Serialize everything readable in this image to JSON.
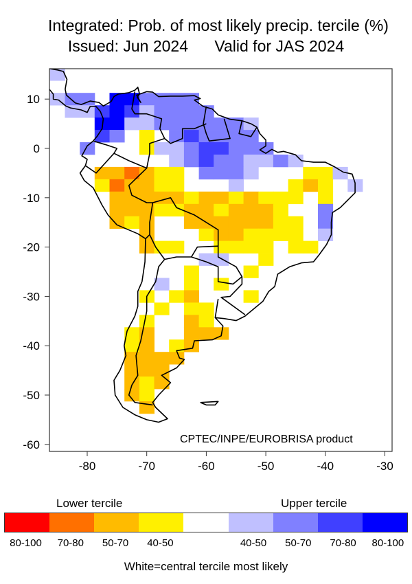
{
  "title": {
    "line1": "Integrated: Prob. of most likely precip. tercile (%)",
    "issued": "Issued: Jun 2024",
    "valid": "Valid for JAS 2024"
  },
  "credit": "CPTEC/INPE/EUROBRISA product",
  "axes": {
    "x_ticks": [
      "-80",
      "-70",
      "-60",
      "-50",
      "-40",
      "-30"
    ],
    "x_values": [
      -80,
      -70,
      -60,
      -50,
      -40,
      -30
    ],
    "y_ticks": [
      "10",
      "0",
      "-10",
      "-20",
      "-30",
      "-40",
      "-50",
      "-60"
    ],
    "y_values": [
      10,
      0,
      -10,
      -20,
      -30,
      -40,
      -50,
      -60
    ],
    "lon_range": [
      -86.3,
      -28.7
    ],
    "lat_range": [
      -61.3,
      16.3
    ]
  },
  "legend": {
    "lower_label": "Lower tercile",
    "upper_label": "Upper tercile",
    "footer": "White=central tercile most likely",
    "bins": [
      {
        "code": -4,
        "label": "80-100",
        "color": "#ff0000"
      },
      {
        "code": -3,
        "label": "70-80",
        "color": "#ff7000"
      },
      {
        "code": -2,
        "label": "50-70",
        "color": "#ffbb00"
      },
      {
        "code": -1,
        "label": "40-50",
        "color": "#fff000"
      },
      {
        "code": 0,
        "label": "",
        "color": "#ffffff"
      },
      {
        "code": 1,
        "label": "40-50",
        "color": "#c0c0ff"
      },
      {
        "code": 2,
        "label": "50-70",
        "color": "#8080ff"
      },
      {
        "code": 3,
        "label": "70-80",
        "color": "#4040ff"
      },
      {
        "code": 4,
        "label": "80-100",
        "color": "#0000ff"
      }
    ]
  },
  "grid": {
    "lon_start": -85,
    "lon_step": 2.5,
    "lat_step": 2.5,
    "rows": [
      {
        "lat": 15,
        "v": [
          1,
          0,
          0,
          0,
          0,
          0,
          0,
          0,
          0,
          0,
          0,
          0,
          0,
          0,
          0,
          0,
          0,
          0,
          0,
          0,
          0,
          0
        ]
      },
      {
        "lat": 10,
        "v": [
          1,
          2,
          2,
          0,
          4,
          4,
          2,
          2,
          2,
          2,
          0,
          0,
          0,
          0,
          0,
          0,
          0,
          0,
          0,
          0,
          0,
          0
        ]
      },
      {
        "lat": 7.5,
        "v": [
          0,
          1,
          1,
          3,
          4,
          3,
          1,
          2,
          2,
          2,
          2,
          0,
          0,
          0,
          0,
          0,
          0,
          0,
          0,
          0,
          0,
          0
        ]
      },
      {
        "lat": 5,
        "v": [
          0,
          0,
          0,
          4,
          4,
          1,
          1,
          2,
          2,
          2,
          2,
          2,
          2,
          1,
          0,
          0,
          0,
          0,
          0,
          0,
          0,
          0
        ]
      },
      {
        "lat": 2.5,
        "v": [
          0,
          0,
          0,
          3,
          2,
          0,
          -1,
          0,
          2,
          3,
          2,
          2,
          2,
          2,
          0,
          0,
          0,
          0,
          0,
          0,
          0,
          0
        ]
      },
      {
        "lat": 0,
        "v": [
          0,
          0,
          2,
          0,
          0,
          0,
          -1,
          1,
          1,
          2,
          3,
          3,
          2,
          2,
          2,
          0,
          0,
          0,
          0,
          0,
          0,
          0
        ]
      },
      {
        "lat": -2.5,
        "v": [
          0,
          0,
          0,
          0,
          0,
          0,
          0,
          0,
          1,
          2,
          3,
          2,
          2,
          1,
          1,
          2,
          1,
          0,
          0,
          0,
          0,
          0
        ]
      },
      {
        "lat": -5,
        "v": [
          0,
          0,
          0,
          -2,
          -2,
          -3,
          -2,
          -1,
          -1,
          0,
          2,
          2,
          2,
          1,
          0,
          0,
          0,
          -1,
          -1,
          1,
          0,
          0
        ]
      },
      {
        "lat": -7.5,
        "v": [
          0,
          0,
          0,
          -1,
          -3,
          -2,
          -2,
          -1,
          -1,
          0,
          0,
          0,
          1,
          0,
          0,
          0,
          -1,
          -2,
          -1,
          0,
          1,
          0
        ]
      },
      {
        "lat": -10,
        "v": [
          0,
          0,
          0,
          0,
          -2,
          -2,
          -2,
          -2,
          -2,
          -1,
          -2,
          -2,
          -1,
          -2,
          -1,
          -1,
          -1,
          0,
          -1,
          0,
          0,
          0
        ]
      },
      {
        "lat": -12.5,
        "v": [
          0,
          0,
          0,
          0,
          -2,
          -2,
          -2,
          -1,
          -1,
          -2,
          -2,
          -1,
          -2,
          -2,
          -2,
          -1,
          0,
          0,
          2,
          0,
          0,
          0
        ]
      },
      {
        "lat": -15,
        "v": [
          0,
          0,
          0,
          0,
          -2,
          -1,
          -2,
          0,
          0,
          -2,
          -2,
          -2,
          -2,
          -2,
          -2,
          -1,
          -1,
          0,
          2,
          0,
          0,
          0
        ]
      },
      {
        "lat": -17.5,
        "v": [
          0,
          0,
          0,
          0,
          0,
          0,
          -2,
          0,
          0,
          0,
          -1,
          -2,
          -2,
          -1,
          -1,
          -1,
          -1,
          0,
          1,
          0,
          0,
          0
        ]
      },
      {
        "lat": -20,
        "v": [
          0,
          0,
          0,
          0,
          0,
          0,
          -2,
          -1,
          -1,
          0,
          0,
          -1,
          -1,
          -1,
          -1,
          0,
          -1,
          -1,
          0,
          0,
          0,
          0
        ]
      },
      {
        "lat": -22.5,
        "v": [
          0,
          0,
          0,
          0,
          0,
          0,
          0,
          0,
          0,
          0,
          1,
          1,
          0,
          0,
          -1,
          0,
          0,
          0,
          0,
          0,
          0,
          0
        ]
      },
      {
        "lat": -25,
        "v": [
          0,
          0,
          0,
          0,
          0,
          0,
          0,
          0,
          0,
          -1,
          0,
          0,
          0,
          -1,
          0,
          0,
          0,
          0,
          0,
          0,
          0,
          0
        ]
      },
      {
        "lat": -27.5,
        "v": [
          0,
          0,
          0,
          0,
          0,
          0,
          0,
          1,
          0,
          -1,
          0,
          -1,
          0,
          0,
          0,
          0,
          0,
          0,
          0,
          0,
          0,
          0
        ]
      },
      {
        "lat": -30,
        "v": [
          0,
          0,
          0,
          0,
          0,
          0,
          -1,
          0,
          -1,
          -2,
          0,
          0,
          0,
          -1,
          0,
          0,
          0,
          0,
          0,
          0,
          0,
          0
        ]
      },
      {
        "lat": -32.5,
        "v": [
          0,
          0,
          0,
          0,
          0,
          0,
          0,
          -1,
          0,
          -1,
          -1,
          0,
          0,
          0,
          0,
          0,
          0,
          0,
          0,
          0,
          0,
          0
        ]
      },
      {
        "lat": -35,
        "v": [
          0,
          0,
          0,
          0,
          0,
          0,
          -1,
          0,
          0,
          -2,
          -1,
          0,
          0,
          0,
          0,
          0,
          0,
          0,
          0,
          0,
          0,
          0
        ]
      },
      {
        "lat": -37.5,
        "v": [
          0,
          0,
          0,
          0,
          0,
          -1,
          -2,
          0,
          0,
          -2,
          -2,
          -2,
          0,
          0,
          0,
          0,
          0,
          0,
          0,
          0,
          0,
          0
        ]
      },
      {
        "lat": -40,
        "v": [
          0,
          0,
          0,
          0,
          0,
          -1,
          -2,
          0,
          -1,
          -2,
          0,
          0,
          0,
          0,
          0,
          0,
          0,
          0,
          0,
          0,
          0,
          0
        ]
      },
      {
        "lat": -42.5,
        "v": [
          0,
          0,
          0,
          0,
          0,
          -2,
          -2,
          -2,
          -2,
          0,
          0,
          0,
          0,
          0,
          0,
          0,
          0,
          0,
          0,
          0,
          0,
          0
        ]
      },
      {
        "lat": -45,
        "v": [
          0,
          0,
          0,
          0,
          0,
          -2,
          -2,
          -2,
          0,
          0,
          0,
          0,
          0,
          0,
          0,
          0,
          0,
          0,
          0,
          0,
          0,
          0
        ]
      },
      {
        "lat": -47.5,
        "v": [
          0,
          0,
          0,
          0,
          0,
          -2,
          -1,
          -2,
          0,
          0,
          0,
          0,
          0,
          0,
          0,
          0,
          0,
          0,
          0,
          0,
          0,
          0
        ]
      },
      {
        "lat": -50,
        "v": [
          0,
          0,
          0,
          0,
          0,
          -2,
          -1,
          0,
          0,
          0,
          0,
          0,
          0,
          0,
          0,
          0,
          0,
          0,
          0,
          0,
          0,
          0
        ]
      },
      {
        "lat": -52.5,
        "v": [
          0,
          0,
          0,
          0,
          0,
          0,
          -2,
          0,
          0,
          0,
          0,
          0,
          0,
          0,
          0,
          0,
          0,
          0,
          0,
          0,
          0,
          0
        ]
      }
    ]
  }
}
